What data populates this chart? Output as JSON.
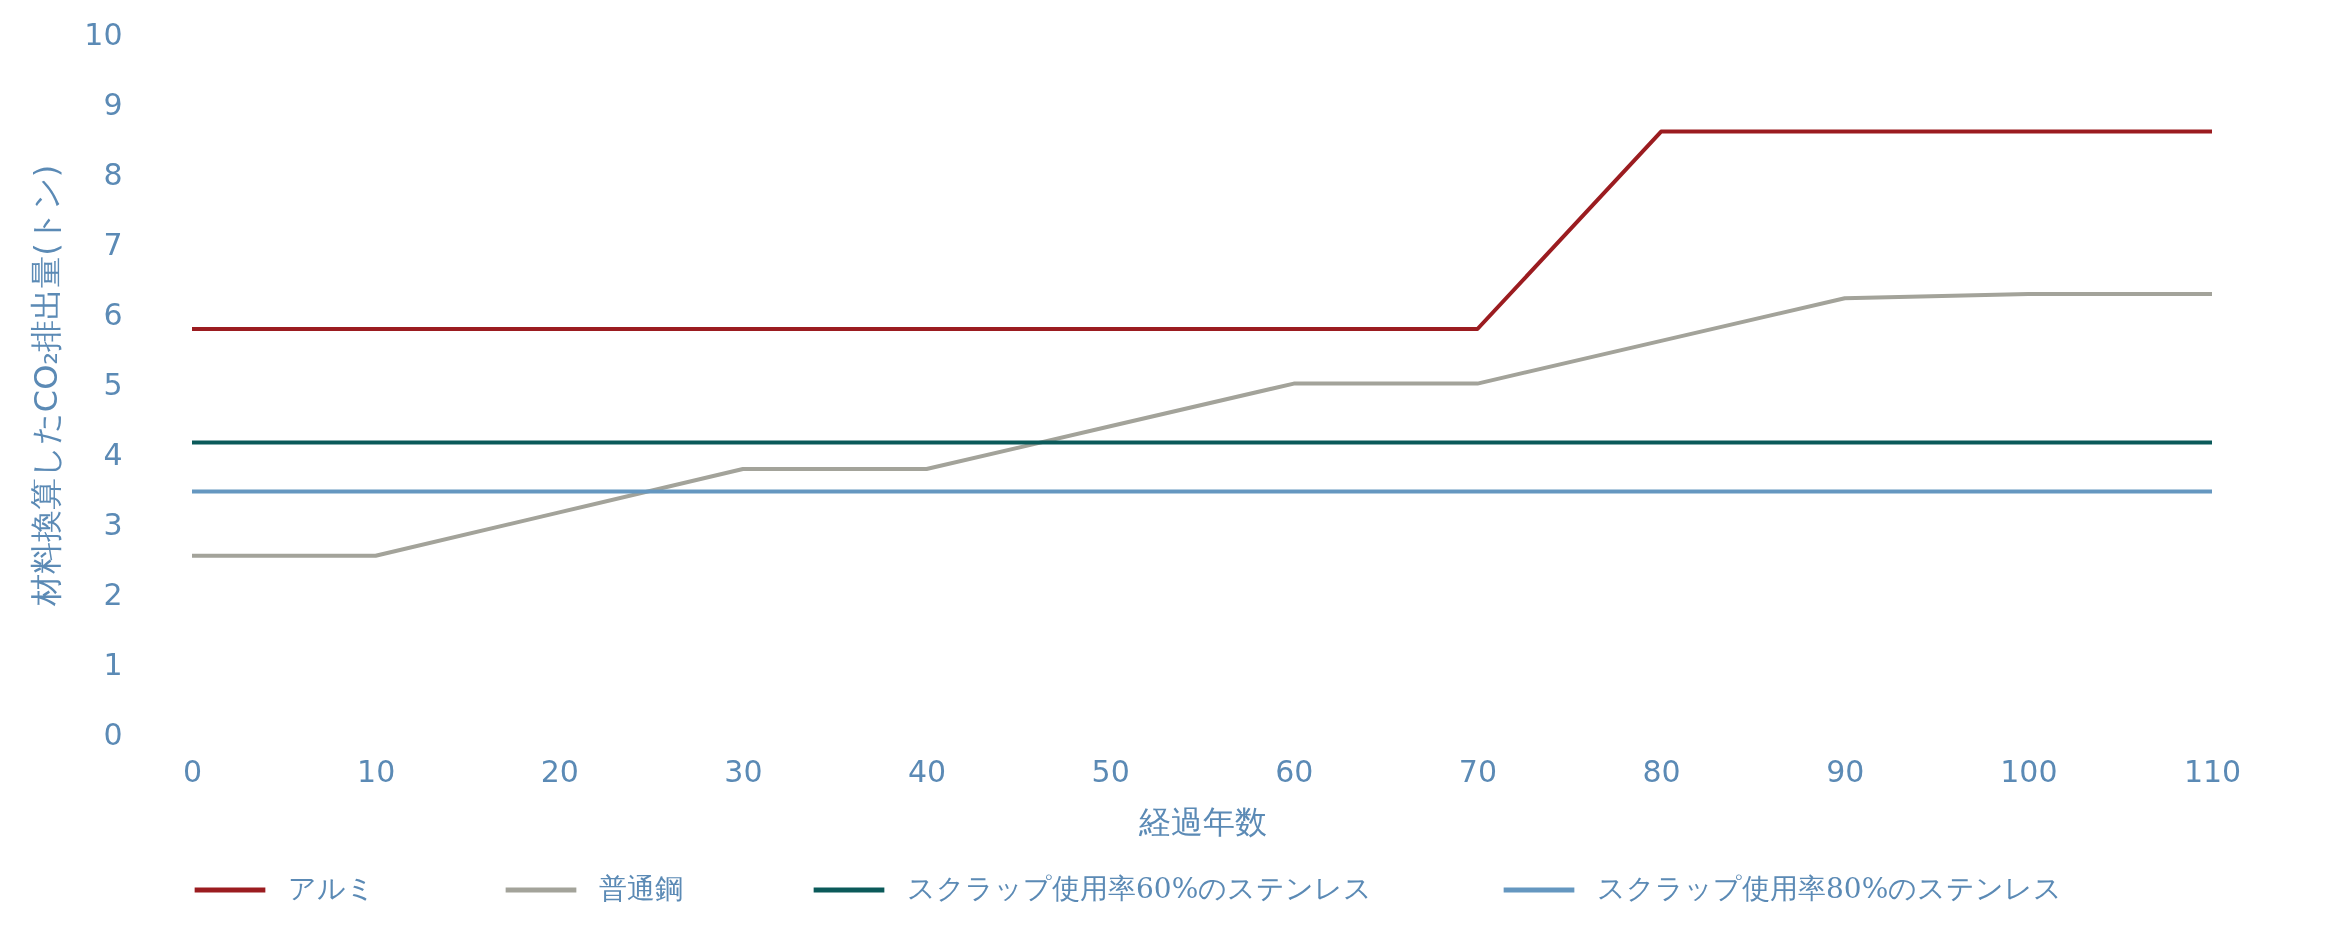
{
  "chart_data": {
    "type": "line",
    "xlabel": "経過年数",
    "ylabel": "材料換算したCO₂排出量(トン)",
    "x": [
      0,
      10,
      20,
      30,
      40,
      50,
      60,
      70,
      80,
      90,
      100,
      110
    ],
    "series": [
      {
        "name": "アルミ",
        "color": "#9b1c20",
        "values": [
          5.8,
          5.8,
          5.8,
          5.8,
          5.8,
          5.8,
          5.8,
          5.8,
          8.62,
          8.62,
          8.62,
          8.62
        ]
      },
      {
        "name": "普通鋼",
        "color": "#a3a39a",
        "values": [
          2.56,
          2.56,
          3.18,
          3.8,
          3.8,
          4.41,
          5.02,
          5.02,
          5.63,
          6.24,
          6.3,
          6.3
        ]
      },
      {
        "name": "スクラップ使用率60%のステンレス",
        "color": "#0b5a5a",
        "values": [
          4.18,
          4.18,
          4.18,
          4.18,
          4.18,
          4.18,
          4.18,
          4.18,
          4.18,
          4.18,
          4.18,
          4.18
        ]
      },
      {
        "name": "スクラップ使用率80%のステンレス",
        "color": "#6597c0",
        "values": [
          3.48,
          3.48,
          3.48,
          3.48,
          3.48,
          3.48,
          3.48,
          3.48,
          3.48,
          3.48,
          3.48,
          3.48
        ]
      }
    ],
    "xlim": [
      0,
      110
    ],
    "xticks": [
      0,
      10,
      20,
      30,
      40,
      50,
      60,
      70,
      80,
      90,
      100,
      110
    ],
    "ylim": [
      0,
      10
    ],
    "yticks": [
      0,
      1,
      2,
      3,
      4,
      5,
      6,
      7,
      8,
      9,
      10
    ],
    "grid": false,
    "legend": "bottom",
    "marker": "none",
    "line_style": "solid"
  }
}
